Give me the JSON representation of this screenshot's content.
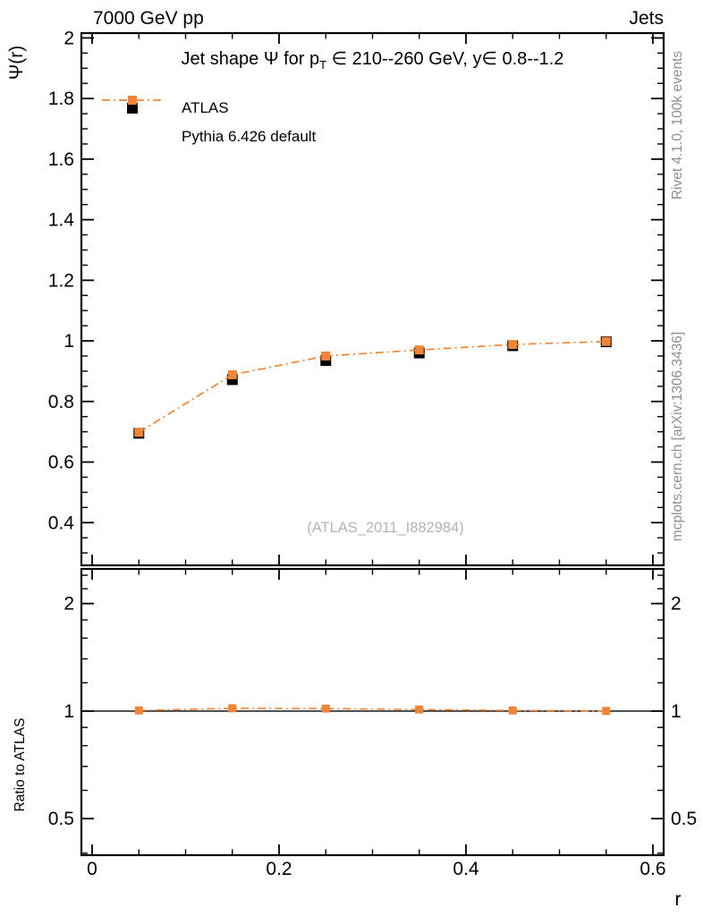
{
  "header": {
    "left": "7000 GeV pp",
    "right": "Jets"
  },
  "main_panel": {
    "title_prefix": "Jet shape Ψ for p",
    "title_sub": "T",
    "title_suffix": " ∈ 210--260 GeV, y∈ 0.8--1.2",
    "ylabel": "Ψ(r)",
    "watermark": "(ATLAS_2011_I882984)"
  },
  "ratio_panel": {
    "ylabel": "Ratio to ATLAS"
  },
  "axes": {
    "xlabel": "r"
  },
  "legend": {
    "entries": [
      {
        "label": "ATLAS",
        "marker": "black-filled-square"
      },
      {
        "label": "Pythia 6.426 default",
        "marker": "orange-square-dashdot-line"
      }
    ]
  },
  "side_notes": {
    "top": "Rivet 4.1.0,  100k events",
    "bottom": "mcplots.cern.ch [arXiv:1306.3436]"
  },
  "colors": {
    "pythia_orange": "#ef8536",
    "atlas_black": "#000000",
    "note_gray": "#8e8e8e",
    "watermark_gray": "#b4b4b4",
    "frame_black": "#000000"
  },
  "chart_data": {
    "type": "line",
    "title": "Jet shape Ψ for pT ∈ 210--260 GeV, y∈ 0.8--1.2",
    "x": [
      0.05,
      0.15,
      0.25,
      0.35,
      0.45,
      0.55
    ],
    "series": [
      {
        "name": "ATLAS",
        "marker": "square",
        "color": "#000000",
        "line": "none",
        "values": [
          0.695,
          0.872,
          0.935,
          0.96,
          0.984,
          0.997
        ]
      },
      {
        "name": "Pythia 6.426 default",
        "marker": "square",
        "color": "#ef8536",
        "line": "dash-dot",
        "values": [
          0.698,
          0.888,
          0.95,
          0.97,
          0.988,
          0.998
        ]
      }
    ],
    "ratio": {
      "name": "Pythia 6.426 default / ATLAS",
      "reference": 1,
      "values": [
        1.004,
        1.018,
        1.016,
        1.01,
        1.004,
        1.001
      ]
    },
    "x_axis": {
      "label": "r",
      "scale": "linear",
      "range": [
        -0.0115,
        0.6115
      ],
      "ticks": [
        0,
        0.2,
        0.4,
        0.6
      ],
      "tick_labels": [
        "0",
        "0.2",
        "0.4",
        "0.6"
      ],
      "minor_step": 0.05
    },
    "y_axis_main": {
      "label": "Ψ(r)",
      "scale": "linear",
      "range": [
        0.259,
        2.016
      ],
      "ticks": [
        0.4,
        0.6,
        0.8,
        1,
        1.2,
        1.4,
        1.6,
        1.8,
        2
      ],
      "tick_labels": [
        "0.4",
        "0.6",
        "0.8",
        "1",
        "1.2",
        "1.4",
        "1.6",
        "1.8",
        "2"
      ],
      "minor_step": 0.05
    },
    "y_axis_ratio": {
      "label": "Ratio to ATLAS",
      "scale": "log",
      "range": [
        0.395,
        2.5
      ],
      "ticks": [
        0.5,
        1,
        2
      ],
      "tick_labels": [
        "0.5",
        "1",
        "2"
      ],
      "minor_ticks": [
        0.4,
        0.6,
        0.7,
        0.8,
        0.9,
        1.2,
        1.4,
        1.6,
        1.8,
        2.2,
        2.4
      ]
    },
    "grid": false,
    "legend_position": "top-left-inside"
  }
}
